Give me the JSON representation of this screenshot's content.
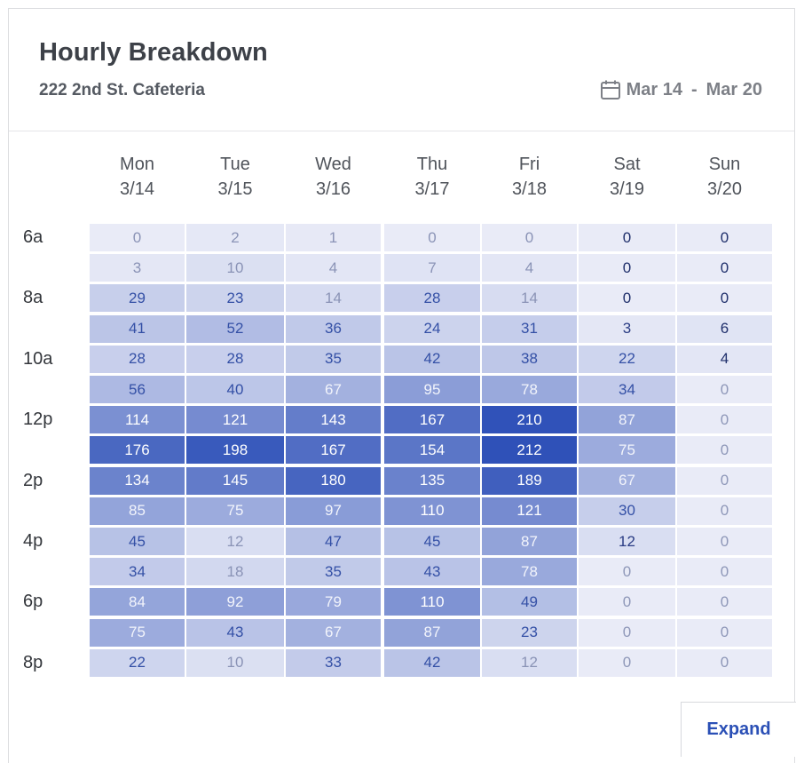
{
  "card": {
    "title": "Hourly Breakdown",
    "subtitle": "222 2nd St. Cafeteria",
    "date_range": {
      "icon": "calendar-icon",
      "start": "Mar 14",
      "separator": "-",
      "end": "Mar 20"
    },
    "expand_label": "Expand"
  },
  "colors": {
    "accent": "#2b50b6",
    "heat_low": "#e9ebf7",
    "heat_high": "#2f51b8"
  },
  "chart_data": {
    "type": "heatmap",
    "days": [
      {
        "name": "Mon",
        "date": "3/14"
      },
      {
        "name": "Tue",
        "date": "3/15"
      },
      {
        "name": "Wed",
        "date": "3/16"
      },
      {
        "name": "Thu",
        "date": "3/17"
      },
      {
        "name": "Fri",
        "date": "3/18"
      },
      {
        "name": "Sat",
        "date": "3/19"
      },
      {
        "name": "Sun",
        "date": "3/20"
      }
    ],
    "hour_labels": [
      "6a",
      "",
      "8a",
      "",
      "10a",
      "",
      "12p",
      "",
      "2p",
      "",
      "4p",
      "",
      "6p",
      "",
      "8p"
    ],
    "values": [
      [
        0,
        2,
        1,
        0,
        0,
        0,
        0
      ],
      [
        3,
        10,
        4,
        7,
        4,
        0,
        0
      ],
      [
        29,
        23,
        14,
        28,
        14,
        0,
        0
      ],
      [
        41,
        52,
        36,
        24,
        31,
        3,
        6
      ],
      [
        28,
        28,
        35,
        42,
        38,
        22,
        4
      ],
      [
        56,
        40,
        67,
        95,
        78,
        34,
        0
      ],
      [
        114,
        121,
        143,
        167,
        210,
        87,
        0
      ],
      [
        176,
        198,
        167,
        154,
        212,
        75,
        0
      ],
      [
        134,
        145,
        180,
        135,
        189,
        67,
        0
      ],
      [
        85,
        75,
        97,
        110,
        121,
        30,
        0
      ],
      [
        45,
        12,
        47,
        45,
        87,
        12,
        0
      ],
      [
        34,
        18,
        35,
        43,
        78,
        0,
        0
      ],
      [
        84,
        92,
        79,
        110,
        49,
        0,
        0
      ],
      [
        75,
        43,
        67,
        87,
        23,
        0,
        0
      ],
      [
        22,
        10,
        33,
        42,
        12,
        0,
        0
      ]
    ]
  }
}
